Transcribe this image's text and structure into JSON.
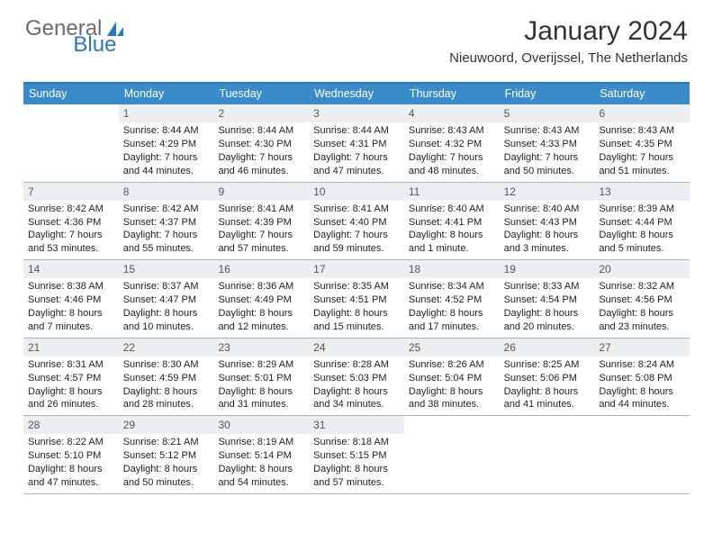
{
  "brand": {
    "text_general": "General",
    "text_blue": "Blue",
    "icon_color": "#2878bd"
  },
  "title": {
    "month": "January 2024",
    "location": "Nieuwoord, Overijssel, The Netherlands"
  },
  "colors": {
    "header_bar": "#3a8bc9",
    "header_top_border": "#2878bd",
    "row_divider": "#9fb8ce",
    "daynum_bg": "#eceff1",
    "daynum_text": "#555555",
    "body_text": "#222222",
    "brand_gray": "#6a6a6a"
  },
  "weekdays": [
    "Sunday",
    "Monday",
    "Tuesday",
    "Wednesday",
    "Thursday",
    "Friday",
    "Saturday"
  ],
  "weeks": [
    [
      {
        "n": "",
        "sunrise": "",
        "sunset": "",
        "day1": "",
        "day2": ""
      },
      {
        "n": "1",
        "sunrise": "Sunrise: 8:44 AM",
        "sunset": "Sunset: 4:29 PM",
        "day1": "Daylight: 7 hours",
        "day2": "and 44 minutes."
      },
      {
        "n": "2",
        "sunrise": "Sunrise: 8:44 AM",
        "sunset": "Sunset: 4:30 PM",
        "day1": "Daylight: 7 hours",
        "day2": "and 46 minutes."
      },
      {
        "n": "3",
        "sunrise": "Sunrise: 8:44 AM",
        "sunset": "Sunset: 4:31 PM",
        "day1": "Daylight: 7 hours",
        "day2": "and 47 minutes."
      },
      {
        "n": "4",
        "sunrise": "Sunrise: 8:43 AM",
        "sunset": "Sunset: 4:32 PM",
        "day1": "Daylight: 7 hours",
        "day2": "and 48 minutes."
      },
      {
        "n": "5",
        "sunrise": "Sunrise: 8:43 AM",
        "sunset": "Sunset: 4:33 PM",
        "day1": "Daylight: 7 hours",
        "day2": "and 50 minutes."
      },
      {
        "n": "6",
        "sunrise": "Sunrise: 8:43 AM",
        "sunset": "Sunset: 4:35 PM",
        "day1": "Daylight: 7 hours",
        "day2": "and 51 minutes."
      }
    ],
    [
      {
        "n": "7",
        "sunrise": "Sunrise: 8:42 AM",
        "sunset": "Sunset: 4:36 PM",
        "day1": "Daylight: 7 hours",
        "day2": "and 53 minutes."
      },
      {
        "n": "8",
        "sunrise": "Sunrise: 8:42 AM",
        "sunset": "Sunset: 4:37 PM",
        "day1": "Daylight: 7 hours",
        "day2": "and 55 minutes."
      },
      {
        "n": "9",
        "sunrise": "Sunrise: 8:41 AM",
        "sunset": "Sunset: 4:39 PM",
        "day1": "Daylight: 7 hours",
        "day2": "and 57 minutes."
      },
      {
        "n": "10",
        "sunrise": "Sunrise: 8:41 AM",
        "sunset": "Sunset: 4:40 PM",
        "day1": "Daylight: 7 hours",
        "day2": "and 59 minutes."
      },
      {
        "n": "11",
        "sunrise": "Sunrise: 8:40 AM",
        "sunset": "Sunset: 4:41 PM",
        "day1": "Daylight: 8 hours",
        "day2": "and 1 minute."
      },
      {
        "n": "12",
        "sunrise": "Sunrise: 8:40 AM",
        "sunset": "Sunset: 4:43 PM",
        "day1": "Daylight: 8 hours",
        "day2": "and 3 minutes."
      },
      {
        "n": "13",
        "sunrise": "Sunrise: 8:39 AM",
        "sunset": "Sunset: 4:44 PM",
        "day1": "Daylight: 8 hours",
        "day2": "and 5 minutes."
      }
    ],
    [
      {
        "n": "14",
        "sunrise": "Sunrise: 8:38 AM",
        "sunset": "Sunset: 4:46 PM",
        "day1": "Daylight: 8 hours",
        "day2": "and 7 minutes."
      },
      {
        "n": "15",
        "sunrise": "Sunrise: 8:37 AM",
        "sunset": "Sunset: 4:47 PM",
        "day1": "Daylight: 8 hours",
        "day2": "and 10 minutes."
      },
      {
        "n": "16",
        "sunrise": "Sunrise: 8:36 AM",
        "sunset": "Sunset: 4:49 PM",
        "day1": "Daylight: 8 hours",
        "day2": "and 12 minutes."
      },
      {
        "n": "17",
        "sunrise": "Sunrise: 8:35 AM",
        "sunset": "Sunset: 4:51 PM",
        "day1": "Daylight: 8 hours",
        "day2": "and 15 minutes."
      },
      {
        "n": "18",
        "sunrise": "Sunrise: 8:34 AM",
        "sunset": "Sunset: 4:52 PM",
        "day1": "Daylight: 8 hours",
        "day2": "and 17 minutes."
      },
      {
        "n": "19",
        "sunrise": "Sunrise: 8:33 AM",
        "sunset": "Sunset: 4:54 PM",
        "day1": "Daylight: 8 hours",
        "day2": "and 20 minutes."
      },
      {
        "n": "20",
        "sunrise": "Sunrise: 8:32 AM",
        "sunset": "Sunset: 4:56 PM",
        "day1": "Daylight: 8 hours",
        "day2": "and 23 minutes."
      }
    ],
    [
      {
        "n": "21",
        "sunrise": "Sunrise: 8:31 AM",
        "sunset": "Sunset: 4:57 PM",
        "day1": "Daylight: 8 hours",
        "day2": "and 26 minutes."
      },
      {
        "n": "22",
        "sunrise": "Sunrise: 8:30 AM",
        "sunset": "Sunset: 4:59 PM",
        "day1": "Daylight: 8 hours",
        "day2": "and 28 minutes."
      },
      {
        "n": "23",
        "sunrise": "Sunrise: 8:29 AM",
        "sunset": "Sunset: 5:01 PM",
        "day1": "Daylight: 8 hours",
        "day2": "and 31 minutes."
      },
      {
        "n": "24",
        "sunrise": "Sunrise: 8:28 AM",
        "sunset": "Sunset: 5:03 PM",
        "day1": "Daylight: 8 hours",
        "day2": "and 34 minutes."
      },
      {
        "n": "25",
        "sunrise": "Sunrise: 8:26 AM",
        "sunset": "Sunset: 5:04 PM",
        "day1": "Daylight: 8 hours",
        "day2": "and 38 minutes."
      },
      {
        "n": "26",
        "sunrise": "Sunrise: 8:25 AM",
        "sunset": "Sunset: 5:06 PM",
        "day1": "Daylight: 8 hours",
        "day2": "and 41 minutes."
      },
      {
        "n": "27",
        "sunrise": "Sunrise: 8:24 AM",
        "sunset": "Sunset: 5:08 PM",
        "day1": "Daylight: 8 hours",
        "day2": "and 44 minutes."
      }
    ],
    [
      {
        "n": "28",
        "sunrise": "Sunrise: 8:22 AM",
        "sunset": "Sunset: 5:10 PM",
        "day1": "Daylight: 8 hours",
        "day2": "and 47 minutes."
      },
      {
        "n": "29",
        "sunrise": "Sunrise: 8:21 AM",
        "sunset": "Sunset: 5:12 PM",
        "day1": "Daylight: 8 hours",
        "day2": "and 50 minutes."
      },
      {
        "n": "30",
        "sunrise": "Sunrise: 8:19 AM",
        "sunset": "Sunset: 5:14 PM",
        "day1": "Daylight: 8 hours",
        "day2": "and 54 minutes."
      },
      {
        "n": "31",
        "sunrise": "Sunrise: 8:18 AM",
        "sunset": "Sunset: 5:15 PM",
        "day1": "Daylight: 8 hours",
        "day2": "and 57 minutes."
      },
      {
        "n": "",
        "sunrise": "",
        "sunset": "",
        "day1": "",
        "day2": ""
      },
      {
        "n": "",
        "sunrise": "",
        "sunset": "",
        "day1": "",
        "day2": ""
      },
      {
        "n": "",
        "sunrise": "",
        "sunset": "",
        "day1": "",
        "day2": ""
      }
    ]
  ]
}
